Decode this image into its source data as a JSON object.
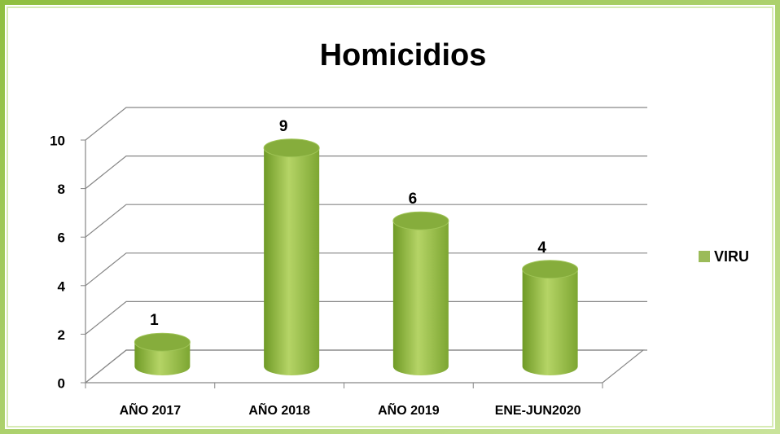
{
  "chart_data": {
    "type": "bar",
    "title": "Homicidios",
    "categories": [
      "AÑO 2017",
      "AÑO 2018",
      "AÑO 2019",
      "ENE-JUN2020"
    ],
    "series": [
      {
        "name": "VIRU",
        "color": "#9bbb59",
        "values": [
          1,
          9,
          6,
          4
        ]
      }
    ],
    "ylim": [
      0,
      10
    ],
    "yticks": [
      0,
      2,
      4,
      6,
      8,
      10
    ],
    "grid": true,
    "legend": "right"
  }
}
